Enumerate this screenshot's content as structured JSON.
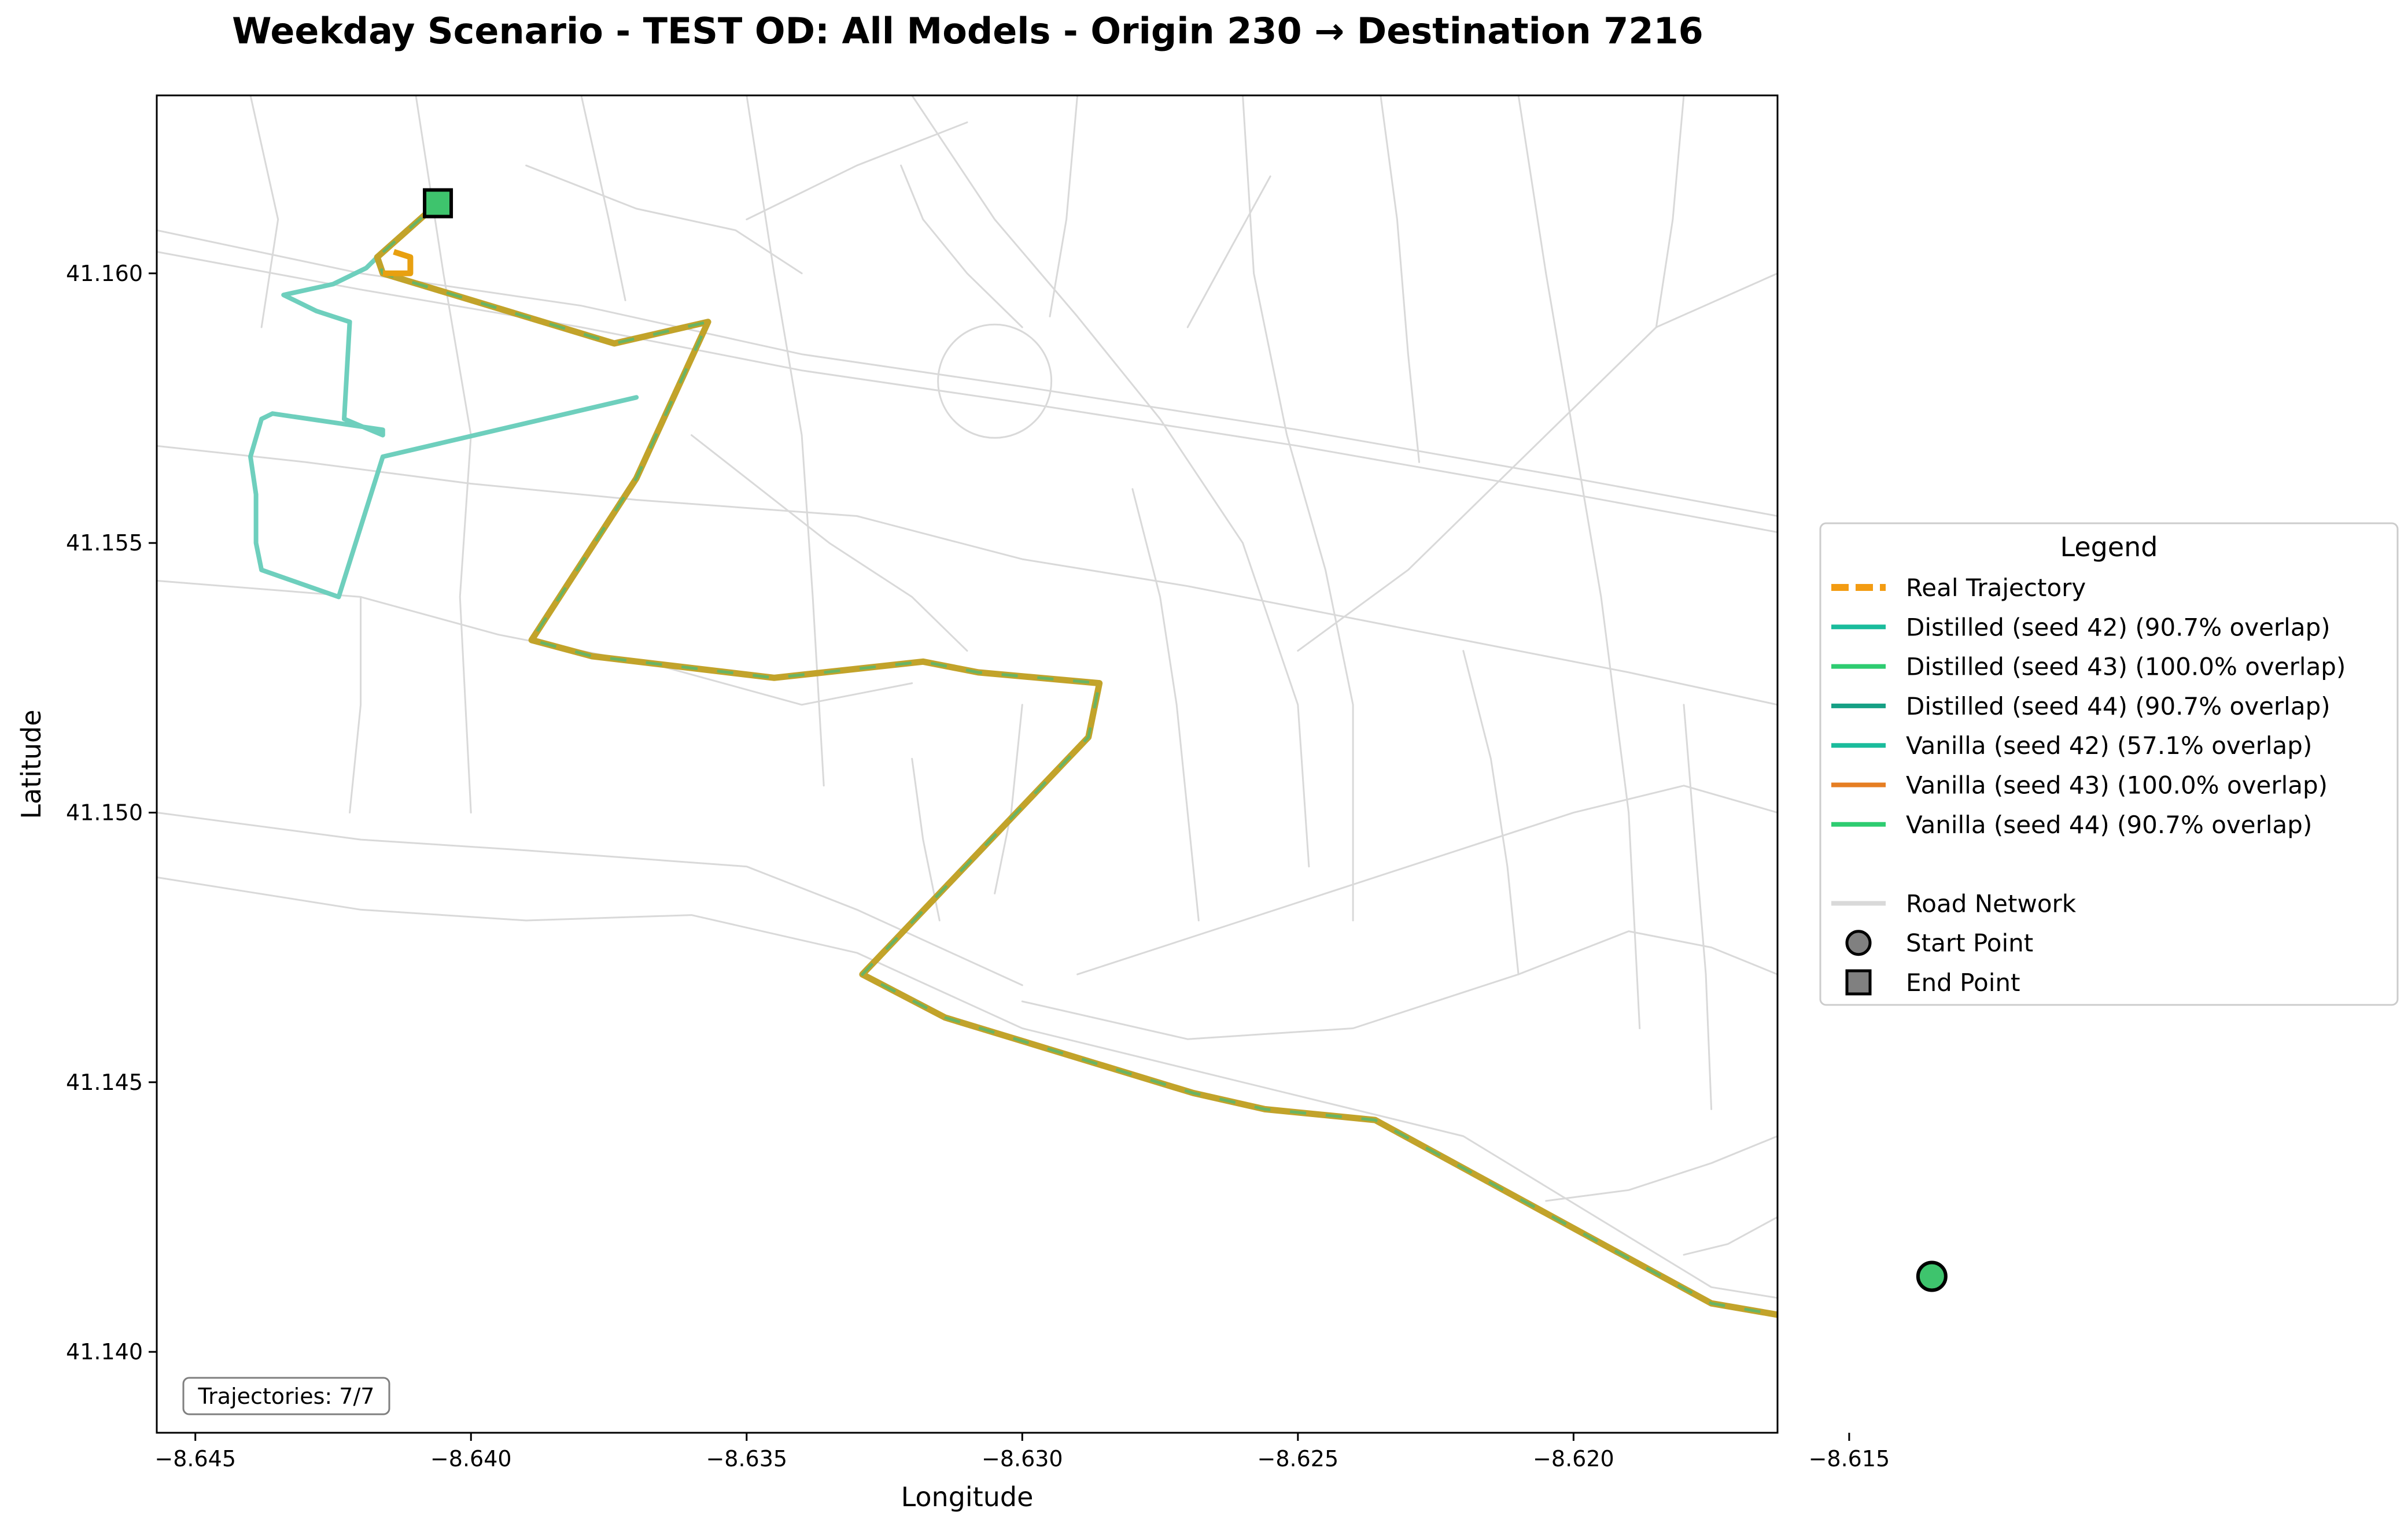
{
  "chart_data": {
    "type": "map-line",
    "title": "Weekday Scenario - TEST OD: All Models - Origin 230 → Destination 7216",
    "xlabel": "Longitude",
    "ylabel": "Latitude",
    "xlim": [
      -8.6457,
      -8.6163
    ],
    "ylim": [
      41.1385,
      41.1633
    ],
    "x_ticks": [
      -8.645,
      -8.64,
      -8.635,
      -8.63,
      -8.625,
      -8.62,
      -8.615
    ],
    "x_tick_labels": [
      "−8.645",
      "−8.640",
      "−8.635",
      "−8.630",
      "−8.625",
      "−8.620",
      "−8.615"
    ],
    "y_ticks": [
      41.14,
      41.145,
      41.15,
      41.155,
      41.16
    ],
    "y_tick_labels": [
      "41.140",
      "41.145",
      "41.150",
      "41.155",
      "41.160"
    ],
    "grid": false,
    "annotation": "Trajectories: 7/7",
    "legend": {
      "title": "Legend",
      "placement": "outside-right",
      "entries": [
        {
          "label": "Real Trajectory",
          "style": "dashed",
          "color": "#f39c12"
        },
        {
          "label": "Distilled (seed 42) (90.7% overlap)",
          "style": "solid",
          "color": "#1abc9c"
        },
        {
          "label": "Distilled (seed 43) (100.0% overlap)",
          "style": "solid",
          "color": "#2ecc71"
        },
        {
          "label": "Distilled (seed 44) (90.7% overlap)",
          "style": "solid",
          "color": "#16a085"
        },
        {
          "label": "Vanilla (seed 42) (57.1% overlap)",
          "style": "solid",
          "color": "#1abc9c"
        },
        {
          "label": "Vanilla (seed 43) (100.0% overlap)",
          "style": "solid",
          "color": "#e67e22"
        },
        {
          "label": "Vanilla (seed 44) (90.7% overlap)",
          "style": "solid",
          "color": "#2ecc71"
        },
        {
          "label": "",
          "style": "none",
          "color": "#ffffff"
        },
        {
          "label": "Road Network",
          "style": "solid",
          "color": "#d9d9d9"
        },
        {
          "label": "Start Point",
          "style": "circle-marker",
          "color": "#808080"
        },
        {
          "label": "End Point",
          "style": "square-marker",
          "color": "#808080"
        }
      ]
    },
    "start_point": {
      "lon": -8.6135,
      "lat": 41.1414,
      "color": "#3ec46d"
    },
    "end_point": {
      "lon": -8.6406,
      "lat": 41.1613,
      "color": "#3ec46d"
    },
    "main_route": [
      [
        -8.6135,
        41.1414
      ],
      [
        -8.6158,
        41.1406
      ],
      [
        -8.6175,
        41.1409
      ],
      [
        -8.6236,
        41.1443
      ],
      [
        -8.6256,
        41.1445
      ],
      [
        -8.6269,
        41.1448
      ],
      [
        -8.6314,
        41.1462
      ],
      [
        -8.6329,
        41.147
      ],
      [
        -8.6288,
        41.1514
      ],
      [
        -8.6286,
        41.1524
      ],
      [
        -8.6308,
        41.1526
      ],
      [
        -8.6318,
        41.1528
      ],
      [
        -8.6345,
        41.1525
      ],
      [
        -8.6378,
        41.1529
      ],
      [
        -8.6389,
        41.1532
      ],
      [
        -8.637,
        41.1562
      ],
      [
        -8.6357,
        41.1591
      ],
      [
        -8.6374,
        41.1587
      ],
      [
        -8.6416,
        41.16
      ],
      [
        -8.6417,
        41.1603
      ],
      [
        -8.6406,
        41.1613
      ]
    ],
    "main_route_colors": [
      "#c2a32a",
      "#58b76e"
    ],
    "deviant_route": {
      "color": "#6ecfbd",
      "points": [
        [
          -8.637,
          41.1577
        ],
        [
          -8.6416,
          41.1566
        ],
        [
          -8.6424,
          41.154
        ],
        [
          -8.6438,
          41.1545
        ],
        [
          -8.6439,
          41.155
        ],
        [
          -8.6439,
          41.1559
        ],
        [
          -8.644,
          41.1566
        ],
        [
          -8.6438,
          41.1573
        ],
        [
          -8.6436,
          41.1574
        ],
        [
          -8.6416,
          41.1571
        ],
        [
          -8.6416,
          41.157
        ],
        [
          -8.6423,
          41.1573
        ],
        [
          -8.6422,
          41.1591
        ],
        [
          -8.6425,
          41.1592
        ],
        [
          -8.6428,
          41.1593
        ],
        [
          -8.6434,
          41.1596
        ],
        [
          -8.6425,
          41.1598
        ],
        [
          -8.6419,
          41.1601
        ],
        [
          -8.6417,
          41.1603
        ]
      ]
    },
    "real_spur": {
      "color": "#e8a010",
      "points": [
        [
          -8.6416,
          41.16
        ],
        [
          -8.6411,
          41.16
        ],
        [
          -8.6411,
          41.1603
        ],
        [
          -8.6414,
          41.1604
        ]
      ]
    },
    "road_network": [
      [
        [
          -8.6457,
          41.1608
        ],
        [
          -8.642,
          41.16
        ],
        [
          -8.638,
          41.1594
        ],
        [
          -8.634,
          41.1585
        ],
        [
          -8.63,
          41.1579
        ],
        [
          -8.625,
          41.1571
        ],
        [
          -8.62,
          41.1562
        ],
        [
          -8.6163,
          41.1555
        ]
      ],
      [
        [
          -8.6457,
          41.1604
        ],
        [
          -8.642,
          41.1597
        ],
        [
          -8.638,
          41.159
        ],
        [
          -8.634,
          41.1582
        ],
        [
          -8.63,
          41.1576
        ],
        [
          -8.625,
          41.1568
        ],
        [
          -8.62,
          41.1559
        ],
        [
          -8.6163,
          41.1552
        ]
      ],
      [
        [
          -8.6457,
          41.1488
        ],
        [
          -8.642,
          41.1482
        ],
        [
          -8.639,
          41.148
        ],
        [
          -8.636,
          41.1481
        ],
        [
          -8.633,
          41.1474
        ],
        [
          -8.63,
          41.146
        ],
        [
          -8.626,
          41.145
        ],
        [
          -8.622,
          41.144
        ],
        [
          -8.6175,
          41.1412
        ],
        [
          -8.6163,
          41.141
        ]
      ],
      [
        [
          -8.6457,
          41.15
        ],
        [
          -8.642,
          41.1495
        ],
        [
          -8.639,
          41.1493
        ],
        [
          -8.635,
          41.149
        ],
        [
          -8.633,
          41.1482
        ],
        [
          -8.63,
          41.1468
        ]
      ],
      [
        [
          -8.6457,
          41.1543
        ],
        [
          -8.642,
          41.154
        ],
        [
          -8.6395,
          41.1533
        ],
        [
          -8.6365,
          41.1527
        ],
        [
          -8.634,
          41.152
        ],
        [
          -8.632,
          41.1524
        ]
      ],
      [
        [
          -8.6457,
          41.1568
        ],
        [
          -8.643,
          41.1565
        ],
        [
          -8.64,
          41.1561
        ],
        [
          -8.637,
          41.1558
        ],
        [
          -8.633,
          41.1555
        ],
        [
          -8.63,
          41.1547
        ],
        [
          -8.627,
          41.1542
        ],
        [
          -8.623,
          41.1534
        ],
        [
          -8.619,
          41.1526
        ],
        [
          -8.6163,
          41.152
        ]
      ],
      [
        [
          -8.641,
          41.1633
        ],
        [
          -8.6405,
          41.16
        ],
        [
          -8.64,
          41.157
        ],
        [
          -8.6402,
          41.154
        ],
        [
          -8.64,
          41.15
        ]
      ],
      [
        [
          -8.635,
          41.1633
        ],
        [
          -8.6345,
          41.16
        ],
        [
          -8.634,
          41.157
        ],
        [
          -8.6338,
          41.154
        ],
        [
          -8.6336,
          41.1505
        ]
      ],
      [
        [
          -8.632,
          41.1633
        ],
        [
          -8.6305,
          41.161
        ],
        [
          -8.629,
          41.1592
        ],
        [
          -8.6275,
          41.1573
        ],
        [
          -8.626,
          41.155
        ],
        [
          -8.625,
          41.152
        ],
        [
          -8.6248,
          41.149
        ]
      ],
      [
        [
          -8.626,
          41.1633
        ],
        [
          -8.6258,
          41.16
        ],
        [
          -8.6252,
          41.157
        ],
        [
          -8.6245,
          41.1545
        ],
        [
          -8.624,
          41.152
        ],
        [
          -8.624,
          41.148
        ]
      ],
      [
        [
          -8.621,
          41.1633
        ],
        [
          -8.6205,
          41.16
        ],
        [
          -8.62,
          41.157
        ],
        [
          -8.6195,
          41.154
        ],
        [
          -8.619,
          41.15
        ],
        [
          -8.6188,
          41.146
        ]
      ],
      [
        [
          -8.6163,
          41.16
        ],
        [
          -8.6185,
          41.159
        ],
        [
          -8.62,
          41.1575
        ],
        [
          -8.6215,
          41.156
        ],
        [
          -8.623,
          41.1545
        ],
        [
          -8.625,
          41.153
        ]
      ],
      [
        [
          -8.6163,
          41.147
        ],
        [
          -8.6175,
          41.1475
        ],
        [
          -8.619,
          41.1478
        ],
        [
          -8.621,
          41.147
        ],
        [
          -8.624,
          41.146
        ],
        [
          -8.627,
          41.1458
        ],
        [
          -8.63,
          41.1465
        ]
      ],
      [
        [
          -8.6163,
          41.15
        ],
        [
          -8.618,
          41.1505
        ],
        [
          -8.62,
          41.15
        ],
        [
          -8.623,
          41.149
        ],
        [
          -8.626,
          41.148
        ],
        [
          -8.629,
          41.147
        ]
      ],
      [
        [
          -8.644,
          41.1633
        ],
        [
          -8.6435,
          41.161
        ],
        [
          -8.6438,
          41.159
        ]
      ],
      [
        [
          -8.638,
          41.1633
        ],
        [
          -8.6375,
          41.161
        ],
        [
          -8.6372,
          41.1595
        ]
      ],
      [
        [
          -8.629,
          41.1633
        ],
        [
          -8.6292,
          41.161
        ],
        [
          -8.6295,
          41.1592
        ]
      ],
      [
        [
          -8.6235,
          41.1633
        ],
        [
          -8.6232,
          41.161
        ],
        [
          -8.623,
          41.1585
        ],
        [
          -8.6228,
          41.1565
        ]
      ],
      [
        [
          -8.618,
          41.1633
        ],
        [
          -8.6182,
          41.161
        ],
        [
          -8.6185,
          41.159
        ]
      ],
      [
        [
          -8.636,
          41.157
        ],
        [
          -8.6335,
          41.155
        ],
        [
          -8.632,
          41.154
        ],
        [
          -8.631,
          41.153
        ]
      ],
      [
        [
          -8.628,
          41.156
        ],
        [
          -8.6275,
          41.154
        ],
        [
          -8.6272,
          41.152
        ],
        [
          -8.627,
          41.15
        ],
        [
          -8.6268,
          41.148
        ]
      ],
      [
        [
          -8.622,
          41.153
        ],
        [
          -8.6215,
          41.151
        ],
        [
          -8.6212,
          41.149
        ],
        [
          -8.621,
          41.147
        ]
      ],
      [
        [
          -8.618,
          41.152
        ],
        [
          -8.6178,
          41.1495
        ],
        [
          -8.6176,
          41.147
        ],
        [
          -8.6175,
          41.1445
        ]
      ],
      [
        [
          -8.6163,
          41.144
        ],
        [
          -8.6175,
          41.1435
        ],
        [
          -8.619,
          41.143
        ],
        [
          -8.6205,
          41.1428
        ]
      ],
      [
        [
          -8.6163,
          41.1425
        ],
        [
          -8.6172,
          41.142
        ],
        [
          -8.618,
          41.1418
        ]
      ],
      [
        [
          -8.6135,
          41.1414
        ],
        [
          -8.613,
          41.143
        ],
        [
          -8.6128,
          41.145
        ],
        [
          -8.6125,
          41.148
        ],
        [
          -8.6122,
          41.152
        ]
      ],
      [
        [
          -8.6135,
          41.1414
        ],
        [
          -8.6118,
          41.1412
        ],
        [
          -8.6163,
          41.1402
        ]
      ],
      [
        [
          -8.642,
          41.154
        ],
        [
          -8.642,
          41.152
        ],
        [
          -8.6422,
          41.15
        ]
      ],
      [
        [
          -8.639,
          41.162
        ],
        [
          -8.637,
          41.1612
        ],
        [
          -8.6352,
          41.1608
        ],
        [
          -8.634,
          41.16
        ]
      ],
      [
        [
          -8.63,
          41.159
        ],
        [
          -8.631,
          41.16
        ],
        [
          -8.6318,
          41.161
        ],
        [
          -8.6322,
          41.162
        ]
      ],
      [
        [
          -8.627,
          41.159
        ],
        [
          -8.6262,
          41.1605
        ],
        [
          -8.6255,
          41.1618
        ]
      ],
      [
        [
          -8.632,
          41.151
        ],
        [
          -8.6318,
          41.1495
        ],
        [
          -8.6315,
          41.148
        ]
      ],
      [
        [
          -8.63,
          41.152
        ],
        [
          -8.6302,
          41.15
        ],
        [
          -8.6305,
          41.1485
        ]
      ],
      [
        [
          -8.635,
          41.161
        ],
        [
          -8.633,
          41.162
        ],
        [
          -8.631,
          41.1628
        ]
      ]
    ]
  }
}
